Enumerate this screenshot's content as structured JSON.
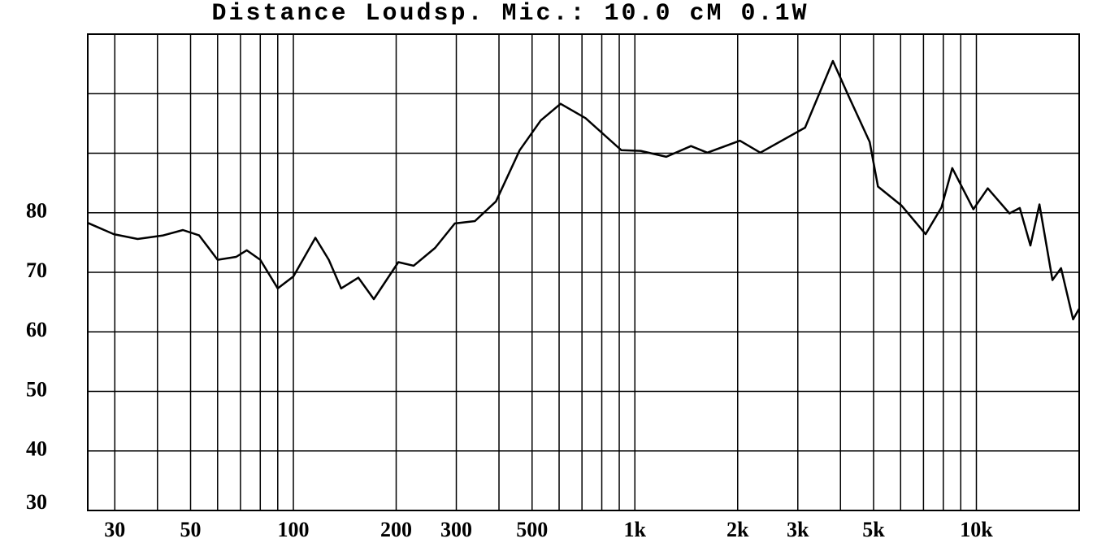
{
  "chart_data": {
    "type": "line",
    "title": "Distance Loudsp. Mic.: 10.0 cM 0.1W",
    "log_x": true,
    "grid": true,
    "xlim": [
      25,
      20000
    ],
    "ylim": [
      30,
      110
    ],
    "xticks": [
      30,
      50,
      100,
      200,
      300,
      500,
      {
        "value": 1000,
        "label": "1k"
      },
      {
        "value": 2000,
        "label": "2k"
      },
      {
        "value": 3000,
        "label": "3k"
      },
      {
        "value": 5000,
        "label": "5k"
      },
      {
        "value": 10000,
        "label": "10k"
      }
    ],
    "xgrid": [
      30,
      40,
      50,
      60,
      70,
      80,
      90,
      100,
      200,
      300,
      400,
      500,
      600,
      700,
      800,
      900,
      1000,
      2000,
      3000,
      4000,
      5000,
      6000,
      7000,
      8000,
      9000,
      10000,
      20000
    ],
    "yticks": [
      30,
      40,
      50,
      60,
      70,
      80
    ],
    "ygrid": [
      90,
      100
    ],
    "x": [
      25,
      29.8,
      35,
      41.6,
      47.5,
      53,
      60,
      68,
      73,
      80,
      90,
      100,
      116,
      127,
      138,
      155,
      172,
      203,
      225,
      260,
      297,
      340,
      392,
      460,
      530,
      606,
      717,
      913,
      1040,
      1236,
      1460,
      1630,
      2030,
      2330,
      3150,
      3800,
      4240,
      4870,
      5150,
      6040,
      7100,
      7900,
      8500,
      9800,
      10800,
      12500,
      13400,
      14400,
      15300,
      16700,
      17700,
      19200,
      20000
    ],
    "series": [
      {
        "color": "#000000",
        "values": [
          78.3,
          76.4,
          75.6,
          76.2,
          77.1,
          76.2,
          72.1,
          72.6,
          73.7,
          72.1,
          67.3,
          69.3,
          75.8,
          72.1,
          67.3,
          69.1,
          65.5,
          71.7,
          71.1,
          74.1,
          78.2,
          78.6,
          81.9,
          90.5,
          95.5,
          98.3,
          95.9,
          90.5,
          90.4,
          89.4,
          91.2,
          90.1,
          92.1,
          90.1,
          94.3,
          105.5,
          99.4,
          91.9,
          84.4,
          81.2,
          76.4,
          80.9,
          87.5,
          80.6,
          84.1,
          79.9,
          80.8,
          74.5,
          81.4,
          68.7,
          70.7,
          62.1,
          63.9
        ]
      }
    ]
  }
}
